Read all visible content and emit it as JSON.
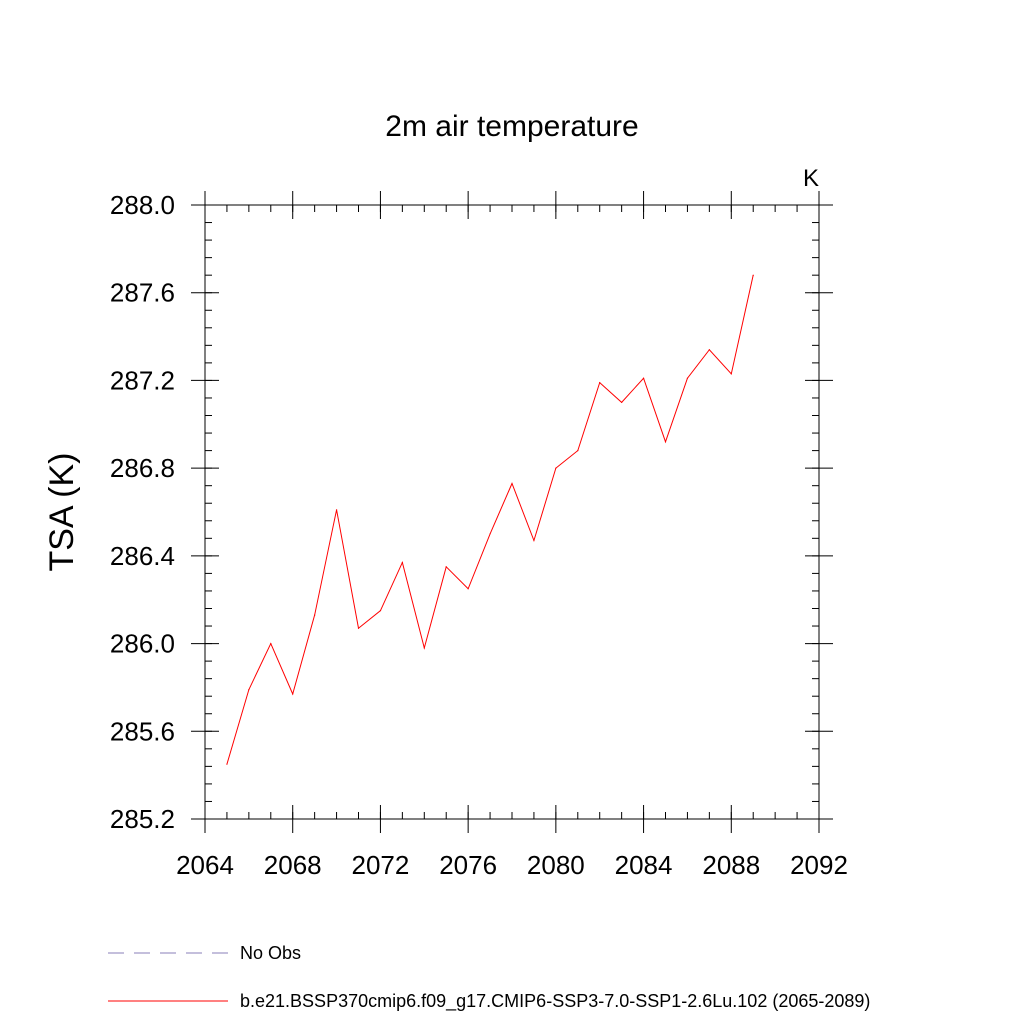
{
  "chart_data": {
    "type": "line",
    "title": "2m air temperature",
    "units_label": "K",
    "xlabel": "",
    "ylabel": "TSA  (K)",
    "xlim": [
      2064,
      2092
    ],
    "ylim": [
      285.2,
      288.0
    ],
    "x_ticks": [
      2064,
      2068,
      2072,
      2076,
      2080,
      2084,
      2088,
      2092
    ],
    "y_ticks": [
      285.2,
      285.6,
      286.0,
      286.4,
      286.8,
      287.2,
      287.6,
      288.0
    ],
    "x_tick_labels": [
      "2064",
      "2068",
      "2072",
      "2076",
      "2080",
      "2084",
      "2088",
      "2092"
    ],
    "y_tick_labels": [
      "285.2",
      "285.6",
      "286.0",
      "286.4",
      "286.8",
      "287.2",
      "287.6",
      "288.0"
    ],
    "x_minor_step": 1,
    "y_minor_step": 0.08,
    "grid": false,
    "legend_position": "bottom-left",
    "series": [
      {
        "name": "b.e21.BSSP370cmip6.f09_g17.CMIP6-SSP3-7.0-SSP1-2.6Lu.102 (2065-2089)",
        "color": "#ff0000",
        "style": "solid",
        "x": [
          2065,
          2066,
          2067,
          2068,
          2069,
          2070,
          2071,
          2072,
          2073,
          2074,
          2075,
          2076,
          2077,
          2078,
          2079,
          2080,
          2081,
          2082,
          2083,
          2084,
          2085,
          2086,
          2087,
          2088,
          2089
        ],
        "values": [
          285.45,
          285.79,
          286.0,
          285.77,
          286.13,
          286.61,
          286.07,
          286.15,
          286.37,
          285.98,
          286.35,
          286.25,
          286.5,
          286.73,
          286.47,
          286.8,
          286.88,
          287.19,
          287.1,
          287.21,
          286.92,
          287.21,
          287.34,
          287.23,
          287.68
        ]
      }
    ],
    "legend": [
      {
        "label": "No Obs",
        "color": "#8a7fb8",
        "style": "dashed"
      },
      {
        "label": "b.e21.BSSP370cmip6.f09_g17.CMIP6-SSP3-7.0-SSP1-2.6Lu.102 (2065-2089)",
        "color": "#ff0000",
        "style": "solid"
      }
    ]
  }
}
